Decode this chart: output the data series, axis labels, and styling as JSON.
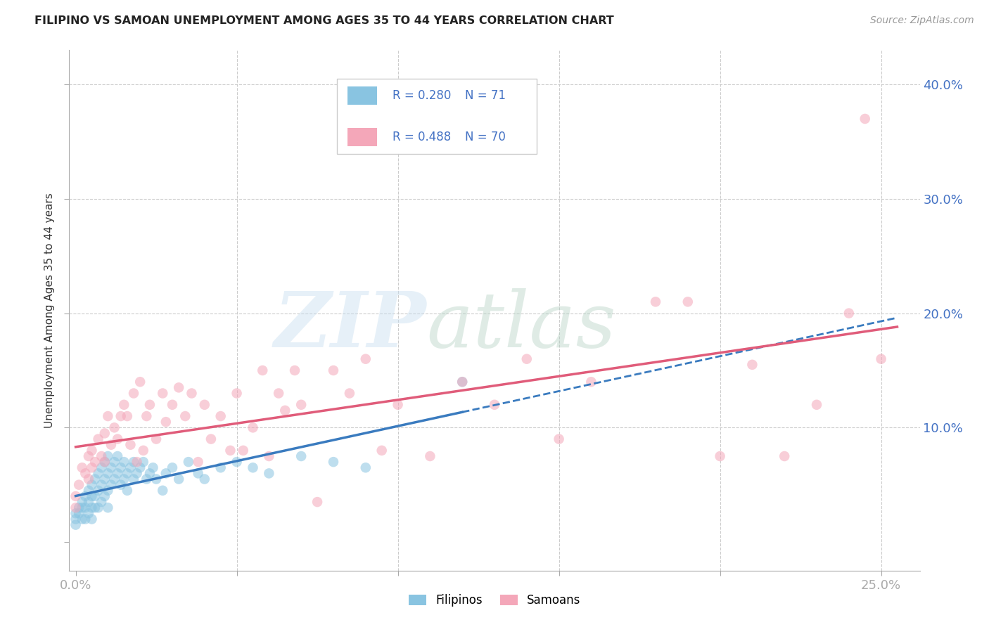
{
  "title": "FILIPINO VS SAMOAN UNEMPLOYMENT AMONG AGES 35 TO 44 YEARS CORRELATION CHART",
  "source": "Source: ZipAtlas.com",
  "ylabel": "Unemployment Among Ages 35 to 44 years",
  "x_min": -0.002,
  "x_max": 0.262,
  "y_min": -0.025,
  "y_max": 0.43,
  "y_ticks": [
    0.0,
    0.1,
    0.2,
    0.3,
    0.4
  ],
  "y_tick_labels_right": [
    "",
    "10.0%",
    "20.0%",
    "30.0%",
    "40.0%"
  ],
  "x_ticks": [
    0.0,
    0.05,
    0.1,
    0.15,
    0.2,
    0.25
  ],
  "x_tick_labels": [
    "0.0%",
    "",
    "",
    "",
    "",
    "25.0%"
  ],
  "filipino_color": "#89c4e1",
  "samoan_color": "#f4a7b9",
  "filipino_line_color": "#3a7bbf",
  "samoan_line_color": "#e05c7a",
  "R_filipino": 0.28,
  "N_filipino": 71,
  "R_samoan": 0.488,
  "N_samoan": 70,
  "filipino_x": [
    0.0,
    0.0,
    0.0,
    0.001,
    0.001,
    0.002,
    0.002,
    0.002,
    0.003,
    0.003,
    0.003,
    0.004,
    0.004,
    0.004,
    0.005,
    0.005,
    0.005,
    0.005,
    0.006,
    0.006,
    0.006,
    0.007,
    0.007,
    0.007,
    0.008,
    0.008,
    0.008,
    0.009,
    0.009,
    0.009,
    0.01,
    0.01,
    0.01,
    0.01,
    0.011,
    0.011,
    0.012,
    0.012,
    0.013,
    0.013,
    0.014,
    0.014,
    0.015,
    0.015,
    0.016,
    0.016,
    0.017,
    0.018,
    0.018,
    0.019,
    0.02,
    0.021,
    0.022,
    0.023,
    0.024,
    0.025,
    0.027,
    0.028,
    0.03,
    0.032,
    0.035,
    0.038,
    0.04,
    0.045,
    0.05,
    0.055,
    0.06,
    0.07,
    0.08,
    0.09,
    0.12
  ],
  "filipino_y": [
    0.025,
    0.02,
    0.015,
    0.03,
    0.025,
    0.035,
    0.03,
    0.02,
    0.04,
    0.03,
    0.02,
    0.045,
    0.035,
    0.025,
    0.05,
    0.04,
    0.03,
    0.02,
    0.055,
    0.04,
    0.03,
    0.06,
    0.045,
    0.03,
    0.065,
    0.05,
    0.035,
    0.07,
    0.055,
    0.04,
    0.075,
    0.06,
    0.045,
    0.03,
    0.065,
    0.05,
    0.07,
    0.055,
    0.075,
    0.06,
    0.065,
    0.05,
    0.07,
    0.055,
    0.06,
    0.045,
    0.065,
    0.07,
    0.055,
    0.06,
    0.065,
    0.07,
    0.055,
    0.06,
    0.065,
    0.055,
    0.045,
    0.06,
    0.065,
    0.055,
    0.07,
    0.06,
    0.055,
    0.065,
    0.07,
    0.065,
    0.06,
    0.075,
    0.07,
    0.065,
    0.14
  ],
  "samoan_x": [
    0.0,
    0.0,
    0.001,
    0.002,
    0.003,
    0.004,
    0.004,
    0.005,
    0.005,
    0.006,
    0.007,
    0.008,
    0.009,
    0.009,
    0.01,
    0.011,
    0.012,
    0.013,
    0.014,
    0.015,
    0.016,
    0.017,
    0.018,
    0.019,
    0.02,
    0.021,
    0.022,
    0.023,
    0.025,
    0.027,
    0.028,
    0.03,
    0.032,
    0.034,
    0.036,
    0.038,
    0.04,
    0.042,
    0.045,
    0.048,
    0.05,
    0.052,
    0.055,
    0.058,
    0.06,
    0.063,
    0.065,
    0.068,
    0.07,
    0.075,
    0.08,
    0.085,
    0.09,
    0.095,
    0.1,
    0.11,
    0.12,
    0.13,
    0.14,
    0.15,
    0.16,
    0.18,
    0.19,
    0.2,
    0.21,
    0.22,
    0.23,
    0.24,
    0.245,
    0.25
  ],
  "samoan_y": [
    0.04,
    0.03,
    0.05,
    0.065,
    0.06,
    0.075,
    0.055,
    0.08,
    0.065,
    0.07,
    0.09,
    0.075,
    0.095,
    0.07,
    0.11,
    0.085,
    0.1,
    0.09,
    0.11,
    0.12,
    0.11,
    0.085,
    0.13,
    0.07,
    0.14,
    0.08,
    0.11,
    0.12,
    0.09,
    0.13,
    0.105,
    0.12,
    0.135,
    0.11,
    0.13,
    0.07,
    0.12,
    0.09,
    0.11,
    0.08,
    0.13,
    0.08,
    0.1,
    0.15,
    0.075,
    0.13,
    0.115,
    0.15,
    0.12,
    0.035,
    0.15,
    0.13,
    0.16,
    0.08,
    0.12,
    0.075,
    0.14,
    0.12,
    0.16,
    0.09,
    0.14,
    0.21,
    0.21,
    0.075,
    0.155,
    0.075,
    0.12,
    0.2,
    0.37,
    0.16
  ]
}
